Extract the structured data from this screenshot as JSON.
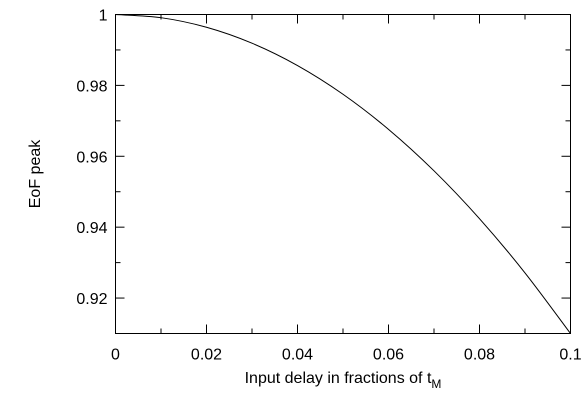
{
  "chart_data": {
    "type": "line",
    "title": "",
    "xlabel_prefix": "Input delay in fractions of t",
    "xlabel_subscript": "M",
    "ylabel": "EoF peak",
    "xlim": [
      0,
      0.1
    ],
    "ylim": [
      0.91,
      1.0
    ],
    "x_ticks": [
      0,
      0.02,
      0.04,
      0.06,
      0.08,
      0.1
    ],
    "x_tick_labels": [
      "0",
      "0.02",
      "0.04",
      "0.06",
      "0.08",
      "0.1"
    ],
    "x_minor_ticks": [
      0.01,
      0.03,
      0.05,
      0.07,
      0.09
    ],
    "y_ticks": [
      0.92,
      0.94,
      0.96,
      0.98,
      1.0
    ],
    "y_tick_labels": [
      "0.92",
      "0.94",
      "0.96",
      "0.98",
      "1"
    ],
    "y_minor_ticks": [
      0.91,
      0.93,
      0.95,
      0.97,
      0.99
    ],
    "grid": false,
    "legend": "none",
    "series": [
      {
        "color": "#000000",
        "x": [
          0,
          0.01,
          0.02,
          0.03,
          0.04,
          0.05,
          0.06,
          0.07,
          0.08,
          0.09,
          0.1
        ],
        "y": [
          1.0,
          0.9991,
          0.9964,
          0.9919,
          0.9856,
          0.9775,
          0.9676,
          0.9559,
          0.9424,
          0.9271,
          0.91
        ]
      }
    ]
  }
}
